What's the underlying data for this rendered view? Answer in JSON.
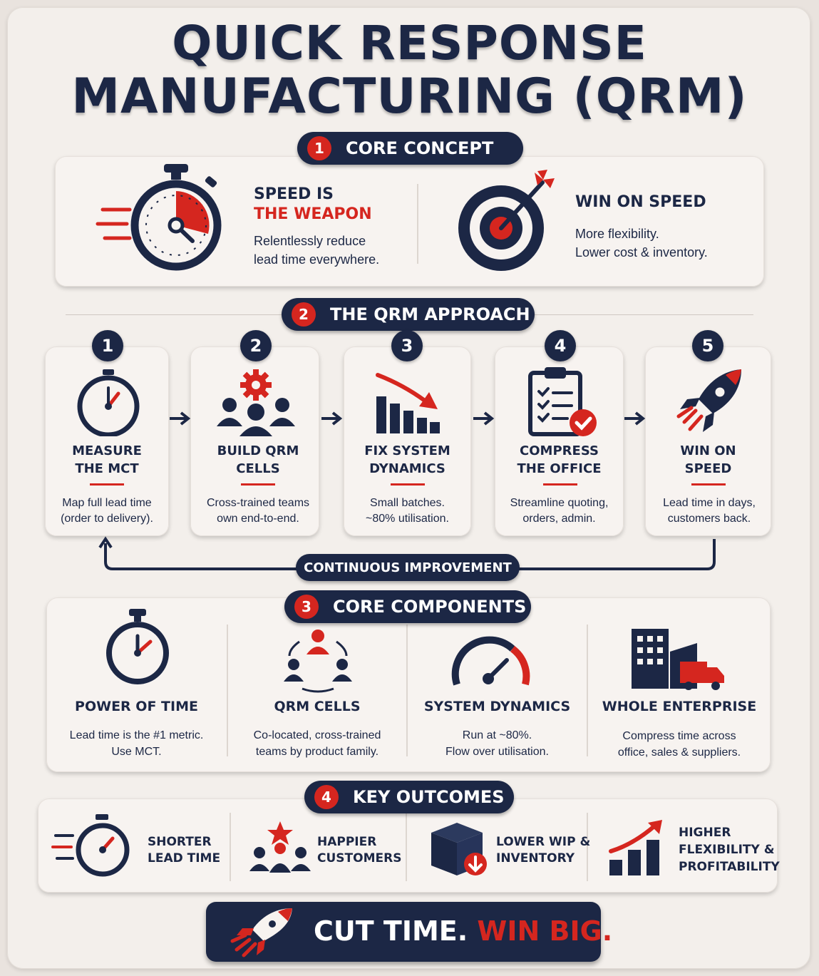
{
  "title": {
    "line1": "QUICK RESPONSE",
    "line2": "MANUFACTURING (QRM)"
  },
  "sections": [
    {
      "number": "1",
      "label": "CORE CONCEPT"
    },
    {
      "number": "2",
      "label": "THE QRM APPROACH"
    },
    {
      "number": "3",
      "label": "CORE COMPONENTS"
    },
    {
      "number": "4",
      "label": "KEY OUTCOMES"
    }
  ],
  "core_concept": {
    "left": {
      "heading_line1": "SPEED IS",
      "heading_line2": "THE WEAPON",
      "desc_line1": "Relentlessly reduce",
      "desc_line2": "lead time everywhere.",
      "icon": "stopwatch-icon"
    },
    "right": {
      "heading": "WIN ON SPEED",
      "desc_line1": "More flexibility.",
      "desc_line2": "Lower cost & inventory.",
      "icon": "target-icon"
    }
  },
  "approach": {
    "steps": [
      {
        "number": "1",
        "title_line1": "MEASURE",
        "title_line2": "THE MCT",
        "desc_line1": "Map full lead time",
        "desc_line2": "(order to delivery).",
        "icon": "stopwatch-icon"
      },
      {
        "number": "2",
        "title_line1": "BUILD QRM",
        "title_line2": "CELLS",
        "desc_line1": "Cross-trained teams",
        "desc_line2": "own end-to-end.",
        "icon": "team-gear-icon"
      },
      {
        "number": "3",
        "title_line1": "FIX SYSTEM",
        "title_line2": "DYNAMICS",
        "desc_line1": "Small batches.",
        "desc_line2": "~80% utilisation.",
        "icon": "declining-bars-icon"
      },
      {
        "number": "4",
        "title_line1": "COMPRESS",
        "title_line2": "THE OFFICE",
        "desc_line1": "Streamline quoting,",
        "desc_line2": "orders, admin.",
        "icon": "clipboard-check-icon"
      },
      {
        "number": "5",
        "title_line1": "WIN ON",
        "title_line2": "SPEED",
        "desc_line1": "Lead time in days,",
        "desc_line2": "customers back.",
        "icon": "rocket-icon"
      }
    ],
    "loop_label": "CONTINUOUS IMPROVEMENT"
  },
  "components": [
    {
      "title": "POWER OF TIME",
      "desc_line1": "Lead time is the #1 metric.",
      "desc_line2": "Use MCT.",
      "icon": "stopwatch-icon"
    },
    {
      "title": "QRM CELLS",
      "desc_line1": "Co-located, cross-trained",
      "desc_line2": "teams by product family.",
      "icon": "team-cycle-icon"
    },
    {
      "title": "SYSTEM DYNAMICS",
      "desc_line1": "Run at ~80%.",
      "desc_line2": "Flow over utilisation.",
      "icon": "gauge-icon"
    },
    {
      "title": "WHOLE ENTERPRISE",
      "desc_line1": "Compress time across",
      "desc_line2": "office, sales & suppliers.",
      "icon": "building-truck-icon"
    }
  ],
  "outcomes": [
    {
      "line1": "SHORTER",
      "line2": "LEAD TIME",
      "icon": "stopwatch-icon"
    },
    {
      "line1": "HAPPIER",
      "line2": "CUSTOMERS",
      "icon": "customers-star-icon"
    },
    {
      "line1": "LOWER WIP &",
      "line2": "INVENTORY",
      "icon": "box-down-icon"
    },
    {
      "line1": "HIGHER",
      "line2": "FLEXIBILITY &",
      "line3": "PROFITABILITY",
      "icon": "growth-chart-icon"
    }
  ],
  "banner": {
    "part1": "CUT TIME.",
    "part2": "WIN BIG.",
    "icon": "rocket-icon"
  },
  "colors": {
    "navy": "#1c2745",
    "red": "#d5261f",
    "background": "#f3efeb"
  }
}
